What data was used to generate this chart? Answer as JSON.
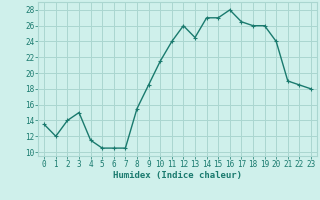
{
  "x": [
    0,
    1,
    2,
    3,
    4,
    5,
    6,
    7,
    8,
    9,
    10,
    11,
    12,
    13,
    14,
    15,
    16,
    17,
    18,
    19,
    20,
    21,
    22,
    23
  ],
  "y": [
    13.5,
    12.0,
    14.0,
    15.0,
    11.5,
    10.5,
    10.5,
    10.5,
    15.5,
    18.5,
    21.5,
    24.0,
    26.0,
    24.5,
    27.0,
    27.0,
    28.0,
    26.5,
    26.0,
    26.0,
    24.0,
    19.0,
    18.5,
    18.0
  ],
  "line_color": "#1a7a6e",
  "marker": "+",
  "marker_size": 3,
  "bg_color": "#cff0eb",
  "grid_color": "#aad6d0",
  "xlabel": "Humidex (Indice chaleur)",
  "ylabel_ticks": [
    10,
    12,
    14,
    16,
    18,
    20,
    22,
    24,
    26,
    28
  ],
  "xlim": [
    -0.5,
    23.5
  ],
  "ylim": [
    9.5,
    29.0
  ],
  "xtick_labels": [
    "0",
    "1",
    "2",
    "3",
    "4",
    "5",
    "6",
    "7",
    "8",
    "9",
    "10",
    "11",
    "12",
    "13",
    "14",
    "15",
    "16",
    "17",
    "18",
    "19",
    "20",
    "21",
    "22",
    "23"
  ],
  "xlabel_fontsize": 6.5,
  "tick_fontsize": 5.5,
  "line_width": 1.0
}
